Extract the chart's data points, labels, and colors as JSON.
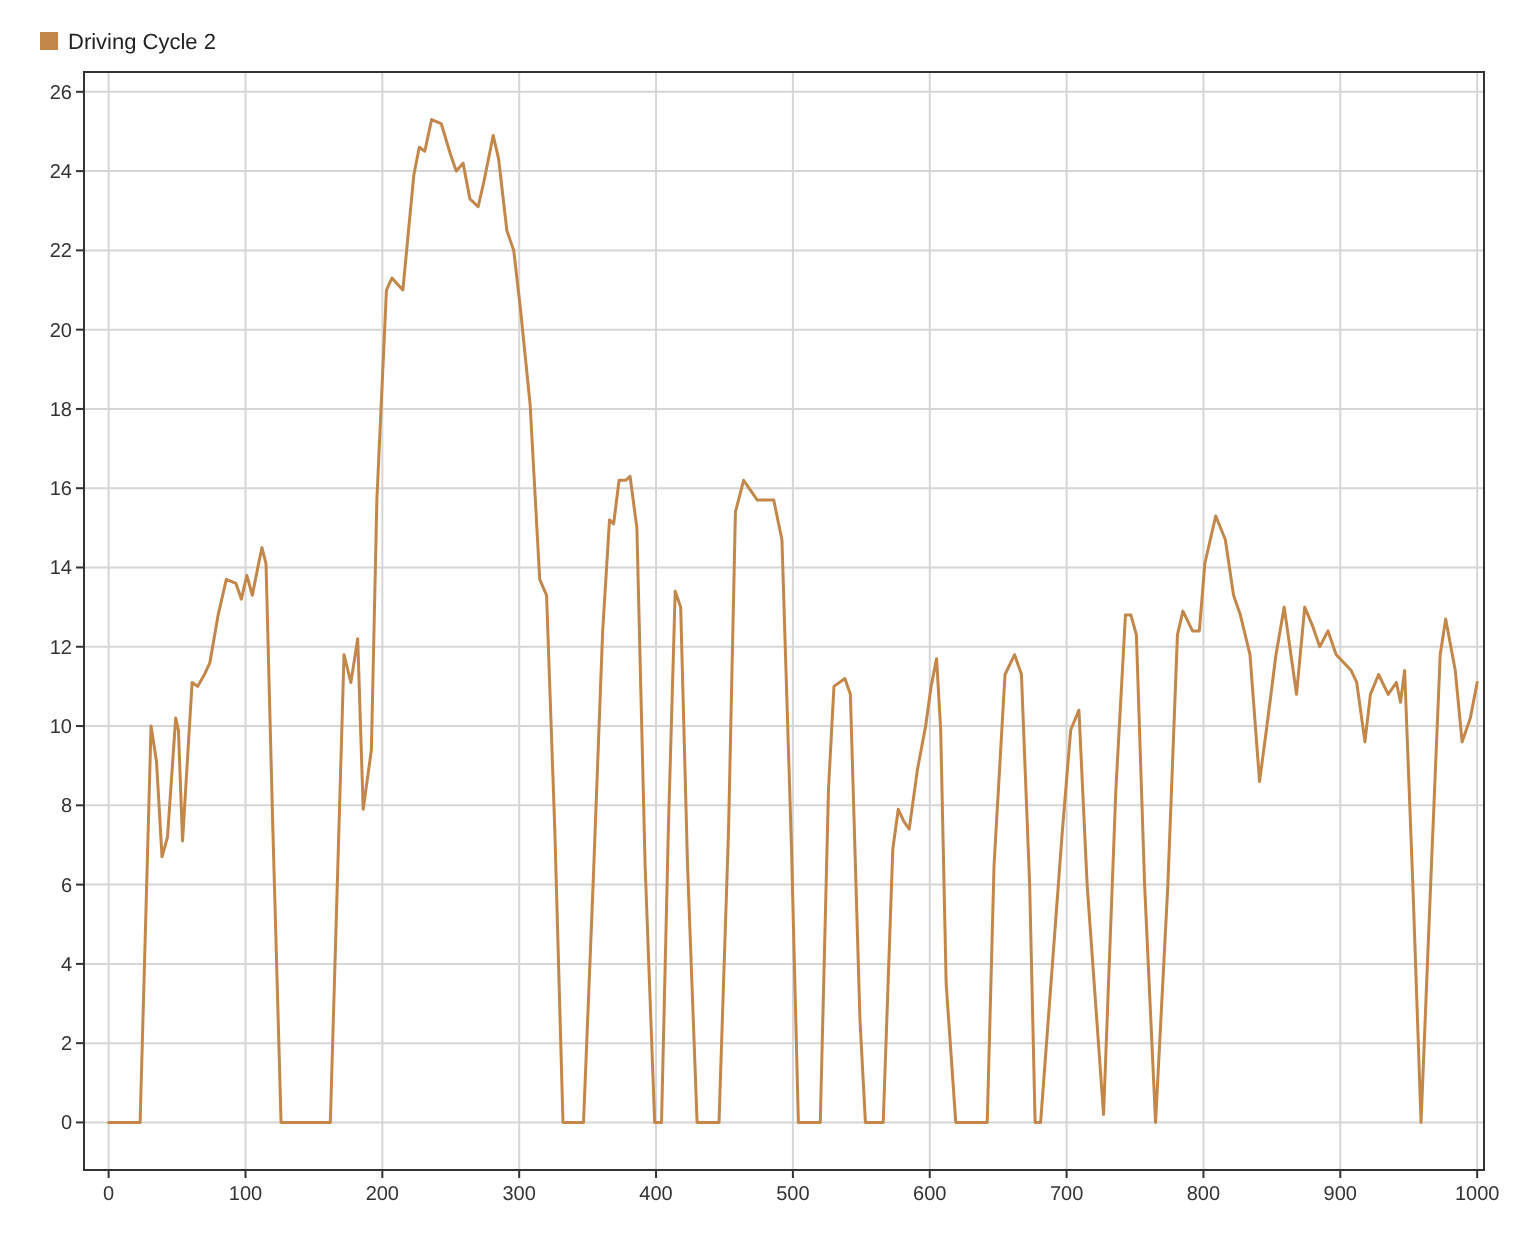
{
  "chart_data": {
    "type": "line",
    "legend": "top left",
    "grid": true,
    "line_style": "solid",
    "marker": "none",
    "xlim": [
      -18,
      1005
    ],
    "ylim": [
      -1.2,
      26.5
    ],
    "xticks": [
      0,
      100,
      200,
      300,
      400,
      500,
      600,
      700,
      800,
      900,
      1000
    ],
    "yticks": [
      0,
      2,
      4,
      6,
      8,
      10,
      12,
      14,
      16,
      18,
      20,
      22,
      24,
      26
    ],
    "series": [
      {
        "name": "Driving Cycle 2",
        "color": "#c4874a",
        "x": [
          0,
          23,
          27,
          31,
          35,
          39,
          43,
          49,
          51,
          54,
          61,
          65,
          70,
          74,
          80,
          86,
          93,
          97,
          101,
          105,
          109,
          112,
          115,
          120,
          126,
          162,
          172,
          177,
          182,
          186,
          192,
          196,
          203,
          207,
          215,
          223,
          227,
          231,
          236,
          243,
          250,
          254,
          259,
          264,
          270,
          274,
          281,
          285,
          291,
          296,
          301,
          308,
          315,
          320,
          326,
          332,
          347,
          354,
          361,
          366,
          369,
          373,
          378,
          381,
          386,
          392,
          399,
          404,
          409,
          414,
          418,
          423,
          430,
          446,
          453,
          458,
          464,
          474,
          486,
          492,
          499,
          504,
          520,
          526,
          530,
          538,
          542,
          549,
          553,
          566,
          573,
          577,
          581,
          585,
          591,
          597,
          601,
          605,
          608,
          612,
          619,
          642,
          647,
          655,
          662,
          667,
          673,
          677,
          681,
          697,
          703,
          709,
          715,
          727,
          736,
          743,
          747,
          751,
          757,
          765,
          774,
          781,
          785,
          792,
          797,
          801,
          809,
          816,
          822,
          827,
          834,
          841,
          846,
          853,
          859,
          868,
          874,
          880,
          885,
          891,
          897,
          908,
          912,
          918,
          922,
          928,
          935,
          941,
          944,
          947,
          953,
          959,
          966,
          973,
          977,
          984,
          989,
          995,
          1000
        ],
        "values": [
          0,
          0,
          5,
          10,
          9.1,
          6.7,
          7.2,
          10.2,
          9.9,
          7.1,
          11.1,
          11,
          11.3,
          11.6,
          12.8,
          13.7,
          13.6,
          13.2,
          13.8,
          13.3,
          14,
          14.5,
          14.1,
          7.4,
          0,
          0,
          11.8,
          11.1,
          12.2,
          7.9,
          9.4,
          15.7,
          21,
          21.3,
          21,
          23.9,
          24.6,
          24.5,
          25.3,
          25.2,
          24.4,
          24,
          24.2,
          23.3,
          23.1,
          23.7,
          24.9,
          24.3,
          22.5,
          22,
          20.5,
          18.1,
          13.7,
          13.3,
          7.4,
          0,
          0,
          6,
          12.4,
          15.2,
          15.1,
          16.2,
          16.2,
          16.3,
          15,
          6.5,
          0,
          0,
          7.4,
          13.4,
          13,
          6.5,
          0,
          0,
          7.4,
          15.4,
          16.2,
          15.7,
          15.7,
          14.7,
          6.9,
          0,
          0,
          8.4,
          11,
          11.2,
          10.8,
          2.6,
          0,
          0,
          6.9,
          7.9,
          7.6,
          7.4,
          8.9,
          10,
          11,
          11.7,
          9.9,
          3.5,
          0,
          0,
          6.5,
          11.3,
          11.8,
          11.3,
          6,
          0,
          0,
          7.4,
          9.9,
          10.4,
          6,
          0.2,
          8.4,
          12.8,
          12.8,
          12.3,
          6,
          0,
          6,
          12.3,
          12.9,
          12.4,
          12.4,
          14.1,
          15.3,
          14.7,
          13.3,
          12.8,
          11.8,
          8.6,
          9.9,
          11.8,
          13,
          10.8,
          13,
          12.5,
          12,
          12.4,
          11.8,
          11.4,
          11.1,
          9.6,
          10.8,
          11.3,
          10.8,
          11.1,
          10.6,
          11.4,
          6,
          0,
          6,
          11.8,
          12.7,
          11.4,
          9.6,
          10.2,
          11.1
        ]
      }
    ]
  }
}
